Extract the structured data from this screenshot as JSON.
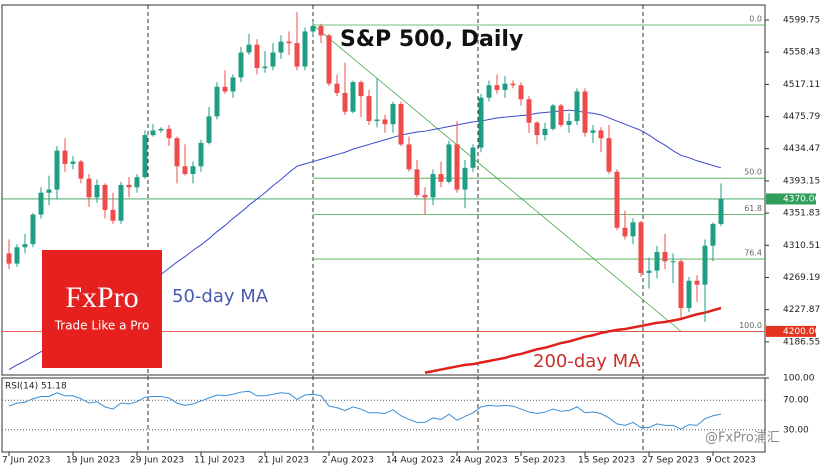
{
  "chart_data": {
    "type": "candlestick",
    "title": "S&P 500, Daily",
    "categories": [
      "7 Jun 2023",
      null,
      null,
      null,
      null,
      null,
      null,
      null,
      "19 Jun 2023",
      null,
      null,
      null,
      null,
      null,
      null,
      null,
      "29 Jun 2023",
      null,
      null,
      null,
      null,
      null,
      null,
      null,
      "11 Jul 2023",
      null,
      null,
      null,
      null,
      null,
      null,
      null,
      "21 Jul 2023",
      null,
      null,
      null,
      null,
      null,
      null,
      null,
      "2 Aug 2023",
      null,
      null,
      null,
      null,
      null,
      null,
      null,
      "14 Aug 2023",
      null,
      null,
      null,
      null,
      null,
      null,
      null,
      "24 Aug 2023",
      null,
      null,
      null,
      null,
      null,
      null,
      null,
      "5 Sep 2023",
      null,
      null,
      null,
      null,
      null,
      null,
      null,
      "15 Sep 2023",
      null,
      null,
      null,
      null,
      null,
      null,
      null,
      "27 Sep 2023",
      null,
      null,
      null,
      null,
      null,
      null,
      null,
      "9 Oct 2023",
      null
    ],
    "open": [
      4300,
      4287,
      4308,
      4312,
      4350,
      4378,
      4382,
      4432,
      4415,
      4418,
      4396,
      4372,
      4388,
      4356,
      4342,
      4388,
      4385,
      4398,
      4452,
      4458,
      4460,
      4448,
      4412,
      4402,
      4412,
      4442,
      4476,
      4514,
      4508,
      4526,
      4558,
      4568,
      4538,
      4540,
      4558,
      4572,
      4570,
      4540,
      4585,
      4592,
      4580,
      4518,
      4506,
      4482,
      4520,
      4502,
      4470,
      4472,
      4466,
      4492,
      4440,
      4408,
      4375,
      4372,
      4402,
      4392,
      4440,
      4382,
      4410,
      4436,
      4500,
      4516,
      4510,
      4518,
      4516,
      4498,
      4468,
      4452,
      4460,
      4490,
      4465,
      4470,
      4508,
      4455,
      4458,
      4448,
      4405,
      4333,
      4322,
      4340,
      4275,
      4278,
      4302,
      4290,
      4290,
      4230,
      4265,
      4260,
      4310,
      4338
    ],
    "high": [
      4318,
      4312,
      4325,
      4352,
      4385,
      4400,
      4438,
      4448,
      4425,
      4420,
      4402,
      4395,
      4390,
      4378,
      4392,
      4398,
      4402,
      4458,
      4466,
      4462,
      4465,
      4450,
      4440,
      4418,
      4446,
      4488,
      4520,
      4535,
      4530,
      4565,
      4582,
      4575,
      4560,
      4570,
      4580,
      4585,
      4610,
      4590,
      4598,
      4595,
      4582,
      4530,
      4545,
      4522,
      4522,
      4510,
      4525,
      4478,
      4495,
      4495,
      4450,
      4420,
      4385,
      4408,
      4418,
      4445,
      4470,
      4420,
      4440,
      4505,
      4522,
      4530,
      4528,
      4522,
      4520,
      4502,
      4470,
      4468,
      4492,
      4492,
      4480,
      4512,
      4512,
      4465,
      4462,
      4465,
      4408,
      4355,
      4345,
      4342,
      4295,
      4310,
      4325,
      4300,
      4292,
      4270,
      4272,
      4318,
      4340,
      4390
    ],
    "low": [
      4280,
      4283,
      4300,
      4308,
      4345,
      4362,
      4370,
      4405,
      4408,
      4390,
      4360,
      4365,
      4345,
      4338,
      4338,
      4372,
      4378,
      4396,
      4450,
      4455,
      4438,
      4390,
      4400,
      4390,
      4405,
      4440,
      4472,
      4505,
      4500,
      4520,
      4555,
      4530,
      4532,
      4535,
      4550,
      4555,
      4535,
      4535,
      4580,
      4570,
      4515,
      4502,
      4478,
      4480,
      4475,
      4465,
      4462,
      4455,
      4455,
      4438,
      4405,
      4372,
      4350,
      4362,
      4385,
      4390,
      4378,
      4358,
      4405,
      4430,
      4495,
      4505,
      4500,
      4512,
      4490,
      4455,
      4440,
      4445,
      4458,
      4462,
      4455,
      4465,
      4450,
      4442,
      4430,
      4402,
      4330,
      4318,
      4312,
      4270,
      4255,
      4268,
      4280,
      4262,
      4218,
      4225,
      4238,
      4212,
      4290,
      4335
    ],
    "close": [
      4287,
      4308,
      4312,
      4350,
      4378,
      4382,
      4432,
      4415,
      4418,
      4396,
      4372,
      4388,
      4356,
      4342,
      4388,
      4385,
      4398,
      4452,
      4458,
      4460,
      4448,
      4412,
      4402,
      4412,
      4442,
      4476,
      4514,
      4508,
      4526,
      4558,
      4568,
      4538,
      4540,
      4558,
      4572,
      4570,
      4540,
      4585,
      4592,
      4580,
      4518,
      4506,
      4482,
      4520,
      4502,
      4470,
      4472,
      4466,
      4492,
      4440,
      4408,
      4375,
      4372,
      4402,
      4392,
      4440,
      4382,
      4410,
      4436,
      4500,
      4516,
      4510,
      4518,
      4516,
      4498,
      4468,
      4452,
      4460,
      4490,
      4465,
      4470,
      4508,
      4455,
      4458,
      4448,
      4405,
      4333,
      4322,
      4340,
      4275,
      4278,
      4302,
      4290,
      4290,
      4230,
      4265,
      4260,
      4310,
      4338,
      4370
    ],
    "up_color": "#1f9e84",
    "down_color": "#ef4b4b",
    "ylim": [
      4144,
      4619
    ],
    "yticks": [
      4599.75,
      4558.43,
      4517.11,
      4475.79,
      4434.47,
      4393.15,
      4351.83,
      4310.51,
      4269.19,
      4227.87,
      4186.55
    ],
    "moving_averages": [
      {
        "name": "50-day MA",
        "color": "#3a4bd0",
        "values": [
          4151,
          4157,
          4162,
          4168,
          4174,
          4179,
          4185,
          4190,
          4196,
          4202,
          4207,
          4213,
          4221,
          4228,
          4236,
          4243,
          4251,
          4258,
          4266,
          4273,
          4281,
          4289,
          4296,
          4304,
          4311,
          4319,
          4328,
          4336,
          4345,
          4353,
          4362,
          4370,
          4378,
          4387,
          4395,
          4404,
          4412,
          4415,
          4418,
          4421,
          4424,
          4427,
          4430,
          4434,
          4437,
          4440,
          4443,
          4446,
          4449,
          4452,
          4454,
          4456,
          4457,
          4459,
          4461,
          4463,
          4465,
          4467,
          4469,
          4470,
          4472,
          4474,
          4475,
          4476,
          4477,
          4478,
          4480,
          4481,
          4482,
          4483,
          4484,
          4483,
          4481,
          4480,
          4478,
          4474,
          4470,
          4466,
          4462,
          4458,
          4452,
          4445,
          4439,
          4432,
          4426,
          4423,
          4419,
          4416,
          4413,
          4410
        ]
      },
      {
        "name": "200-day MA",
        "color": "#e0201b",
        "values": [
          null,
          null,
          null,
          null,
          null,
          null,
          null,
          null,
          null,
          null,
          null,
          null,
          null,
          null,
          null,
          null,
          null,
          null,
          null,
          null,
          null,
          null,
          null,
          null,
          null,
          null,
          null,
          null,
          null,
          null,
          null,
          null,
          null,
          null,
          null,
          null,
          null,
          null,
          null,
          null,
          null,
          null,
          null,
          null,
          null,
          null,
          null,
          null,
          null,
          null,
          null,
          null,
          4147,
          4149,
          4151,
          4153,
          4155,
          4157,
          4158,
          4160,
          4162,
          4164,
          4166,
          4169,
          4171,
          4174,
          4177,
          4179,
          4182,
          4185,
          4187,
          4190,
          4193,
          4195,
          4198,
          4200,
          4202,
          4203,
          4205,
          4207,
          4209,
          4211,
          4212,
          4214,
          4216,
          4219,
          4222,
          4224,
          4227,
          4230
        ]
      }
    ],
    "price_lines": [
      {
        "value": 4370,
        "label": "4370.00",
        "color": "#2f9e5a"
      },
      {
        "value": 4200,
        "label": "4200.00",
        "color": "#e2341f"
      }
    ],
    "fibonacci": {
      "high": 4593.3,
      "low": 4200,
      "color": "#45a845",
      "levels": [
        {
          "value": 0,
          "label": "0.0"
        },
        {
          "value": 50,
          "label": "50.0"
        },
        {
          "value": 61.8,
          "label": "61.8"
        },
        {
          "value": 76.4,
          "label": "76.4"
        },
        {
          "value": 100,
          "label": "100.0"
        }
      ]
    },
    "rsi": {
      "title": "RSI(14) 51.18",
      "color": "#3b8fd8",
      "ylim": [
        0,
        100
      ],
      "yticks": [
        {
          "value": 100,
          "label": "100.00"
        },
        {
          "value": 70,
          "label": "70.00"
        },
        {
          "value": 30,
          "label": "30.00"
        }
      ],
      "values": [
        62,
        66,
        67,
        72,
        75,
        75,
        80,
        76,
        76,
        72,
        66,
        68,
        61,
        58,
        66,
        65,
        68,
        74,
        75,
        75,
        73,
        66,
        63,
        65,
        69,
        73,
        77,
        76,
        78,
        81,
        82,
        76,
        76,
        78,
        80,
        79,
        71,
        77,
        78,
        76,
        62,
        60,
        56,
        61,
        58,
        53,
        53,
        52,
        57,
        49,
        44,
        40,
        40,
        46,
        44,
        51,
        43,
        48,
        53,
        61,
        63,
        62,
        63,
        62,
        58,
        54,
        52,
        54,
        58,
        55,
        56,
        61,
        53,
        54,
        52,
        46,
        38,
        36,
        40,
        33,
        33,
        38,
        36,
        36,
        31,
        37,
        36,
        45,
        49,
        51.18
      ]
    }
  },
  "logo": {
    "name": "FxPro",
    "slogan": "Trade Like a Pro"
  },
  "watermark": "@FxPro浦汇"
}
